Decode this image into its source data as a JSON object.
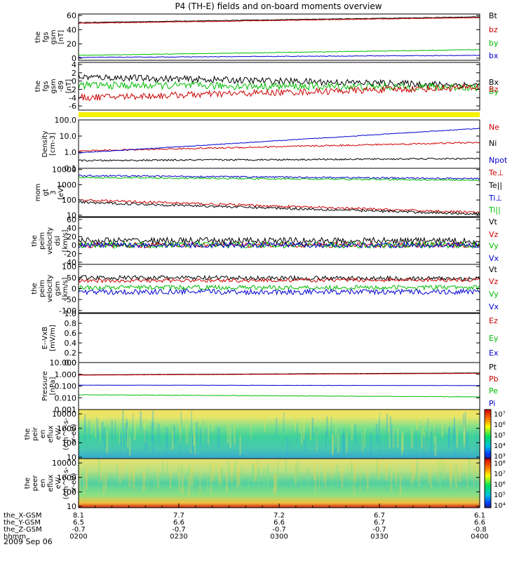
{
  "title": "P4 (TH-E) fields and on-board moments overview",
  "date": "2009 Sep 06",
  "chart_data": [
    {
      "type": "line",
      "ylabel": [
        "the",
        "fgs",
        "gsm",
        "[nT]"
      ],
      "yticks": [
        "60",
        "40",
        "20",
        "0"
      ],
      "tick_values": [
        60,
        40,
        20,
        0
      ],
      "ylim": [
        -3,
        62
      ],
      "yscale": "linear",
      "legend": [
        {
          "label": "Bt",
          "color": "#000000"
        },
        {
          "label": "bz",
          "color": "#cc0000"
        },
        {
          "label": "by",
          "color": "#00bb00"
        },
        {
          "label": "bx",
          "color": "#0000cc"
        }
      ],
      "series": [
        {
          "color": "#000000",
          "start": 50,
          "end": 58,
          "noise": 0.4
        },
        {
          "color": "#cc0000",
          "start": 49,
          "end": 57,
          "noise": 0.4
        },
        {
          "color": "#00bb00",
          "start": 4,
          "end": 12,
          "noise": 0.4
        },
        {
          "color": "#0000cc",
          "start": 1,
          "end": 4,
          "noise": 0.4
        }
      ]
    },
    {
      "type": "line",
      "ylabel": [
        "the",
        "fgs",
        "gsm",
        "-89"
      ],
      "ylabel_suffix": "[nT]",
      "yticks": [
        "4",
        "2",
        "0",
        "-2",
        "-4",
        "-6"
      ],
      "tick_values": [
        4,
        2,
        0,
        -2,
        -4,
        -6
      ],
      "ylim": [
        -7,
        4.5
      ],
      "yscale": "linear",
      "legend": [
        {
          "label": "Bx",
          "color": "#000000"
        },
        {
          "label": "By",
          "color": "#00bb00"
        },
        {
          "label": "Bz",
          "color": "#cc0000"
        }
      ],
      "series": [
        {
          "color": "#000000",
          "start": 1,
          "end": -1,
          "noise": 0.8
        },
        {
          "color": "#00bb00",
          "start": -1,
          "end": -1.5,
          "noise": 0.9
        },
        {
          "color": "#cc0000",
          "start": -4,
          "end": -1.5,
          "noise": 0.8
        }
      ]
    },
    {
      "type": "line",
      "ylabel": [
        "Density",
        "[cm-3]"
      ],
      "yticks": [
        "100.0",
        "10.0",
        "1.0",
        "0.1"
      ],
      "tick_values": [
        100,
        10,
        1,
        0.1
      ],
      "ylim": [
        0.1,
        100
      ],
      "yscale": "log",
      "legend": [
        {
          "label": "Ne",
          "color": "#cc0000"
        },
        {
          "label": "Ni",
          "color": "#000000"
        },
        {
          "label": "Npot",
          "color": "#0000cc"
        }
      ],
      "series": [
        {
          "color": "#cc0000",
          "start": 1.2,
          "end": 4,
          "noise": 0.05
        },
        {
          "color": "#000000",
          "start": 0.3,
          "end": 0.4,
          "noise": 0.05
        },
        {
          "color": "#0000cc",
          "start": 0.9,
          "end": 30,
          "noise": 0.02
        }
      ]
    },
    {
      "type": "line",
      "ylabel": [
        "mom",
        "gt",
        "3",
        "[eV]"
      ],
      "yticks": [
        "10000",
        "1000",
        "100",
        "10"
      ],
      "tick_values": [
        10000,
        1000,
        100,
        10
      ],
      "ylim": [
        8,
        12000
      ],
      "yscale": "log",
      "legend": [
        {
          "label": "Te⊥",
          "color": "#cc0000"
        },
        {
          "label": "Te||",
          "color": "#000000"
        },
        {
          "label": "Ti⊥",
          "color": "#0000cc"
        },
        {
          "label": "Ti||",
          "color": "#00bb00"
        }
      ],
      "series": [
        {
          "color": "#cc0000",
          "start": 100,
          "end": 15,
          "noise": 0.08
        },
        {
          "color": "#000000",
          "start": 70,
          "end": 12,
          "noise": 0.08
        },
        {
          "color": "#0000cc",
          "start": 4000,
          "end": 2500,
          "noise": 0.05
        },
        {
          "color": "#00bb00",
          "start": 3000,
          "end": 2000,
          "noise": 0.05
        }
      ]
    },
    {
      "type": "line",
      "ylabel": [
        "the",
        "peim",
        "velocity",
        "dsl",
        "[km/s]"
      ],
      "yticks": [
        "60",
        "40",
        "20",
        "0",
        "-20",
        "-40"
      ],
      "tick_values": [
        60,
        40,
        20,
        0,
        -20,
        -40
      ],
      "ylim": [
        -45,
        65
      ],
      "yscale": "linear",
      "legend": [
        {
          "label": "Vt",
          "color": "#000000"
        },
        {
          "label": "Vz",
          "color": "#cc0000"
        },
        {
          "label": "Vy",
          "color": "#00bb00"
        },
        {
          "label": "Vx",
          "color": "#0000cc"
        }
      ],
      "series": [
        {
          "color": "#000000",
          "start": 10,
          "end": 10,
          "noise": 8
        },
        {
          "color": "#cc0000",
          "start": 0,
          "end": 0,
          "noise": 6
        },
        {
          "color": "#00bb00",
          "start": 0,
          "end": 0,
          "noise": 7
        },
        {
          "color": "#0000cc",
          "start": 0,
          "end": 0,
          "noise": 6
        }
      ]
    },
    {
      "type": "line",
      "ylabel": [
        "the",
        "peim",
        "velocity",
        "gsm",
        "[km/s]"
      ],
      "yticks": [
        "100",
        "50",
        "0",
        "-50",
        "-100"
      ],
      "tick_values": [
        100,
        50,
        0,
        -50,
        -100
      ],
      "ylim": [
        -110,
        110
      ],
      "yscale": "linear",
      "legend": [
        {
          "label": "Vt",
          "color": "#000000"
        },
        {
          "label": "Vz",
          "color": "#cc0000"
        },
        {
          "label": "Vy",
          "color": "#00bb00"
        },
        {
          "label": "Vx",
          "color": "#0000cc"
        }
      ],
      "series": [
        {
          "color": "#000000",
          "start": 50,
          "end": 45,
          "noise": 10
        },
        {
          "color": "#cc0000",
          "start": 35,
          "end": 40,
          "noise": 8
        },
        {
          "color": "#00bb00",
          "start": 5,
          "end": 5,
          "noise": 10
        },
        {
          "color": "#0000cc",
          "start": -15,
          "end": -15,
          "noise": 12
        }
      ]
    },
    {
      "type": "line",
      "ylabel": [
        "E--VxB",
        "[mV/m]"
      ],
      "yticks": [
        "1.0",
        "0.8",
        "0.6",
        "0.4",
        "0.2",
        "0.0"
      ],
      "tick_values": [
        1,
        0.8,
        0.6,
        0.4,
        0.2,
        0
      ],
      "ylim": [
        0,
        1
      ],
      "yscale": "linear",
      "legend": [
        {
          "label": "Ez",
          "color": "#cc0000"
        },
        {
          "label": "Ey",
          "color": "#00bb00"
        },
        {
          "label": "Ex",
          "color": "#0000cc"
        }
      ],
      "series": []
    },
    {
      "type": "line",
      "ylabel": [
        "Pressure",
        "[nPa]"
      ],
      "yticks": [
        "10.000",
        "1.000",
        "0.100",
        "0.010",
        "0.001"
      ],
      "tick_values": [
        10,
        1,
        0.1,
        0.01,
        0.001
      ],
      "ylim": [
        0.001,
        10
      ],
      "yscale": "log",
      "legend": [
        {
          "label": "Pt",
          "color": "#000000"
        },
        {
          "label": "Pb",
          "color": "#cc0000"
        },
        {
          "label": "Pe",
          "color": "#00bb00"
        },
        {
          "label": "Pi",
          "color": "#0000cc"
        }
      ],
      "series": [
        {
          "color": "#000000",
          "start": 0.9,
          "end": 1.3,
          "noise": 0.005
        },
        {
          "color": "#cc0000",
          "start": 0.85,
          "end": 1.2,
          "noise": 0.005
        },
        {
          "color": "#0000cc",
          "start": 0.12,
          "end": 0.11,
          "noise": 0.01
        },
        {
          "color": "#00bb00",
          "start": 0.018,
          "end": 0.012,
          "noise": 0.02
        }
      ]
    },
    {
      "type": "heatmap",
      "ylabel": [
        "the",
        "peir",
        "en",
        "eflux",
        "eV/",
        "(cm^2-s-",
        "sr-eV)"
      ],
      "yticks": [
        "10000",
        "1000",
        "100",
        "10"
      ],
      "tick_values": [
        10000,
        1000,
        100,
        10
      ],
      "ylim": [
        8,
        20000
      ],
      "yscale": "log",
      "colorbar_ticks": [
        "10⁷",
        "10⁶",
        "10⁵",
        "10⁴",
        "10³"
      ],
      "series": []
    },
    {
      "type": "heatmap",
      "ylabel": [
        "the",
        "peer",
        "en",
        "eflux",
        "eV/",
        "(cm^2-s-",
        "sr-eV)"
      ],
      "yticks": [
        "10000",
        "1000",
        "100",
        "10"
      ],
      "tick_values": [
        10000,
        1000,
        100,
        10
      ],
      "ylim": [
        8,
        20000
      ],
      "yscale": "log",
      "colorbar_ticks": [
        "10⁸",
        "10⁷",
        "10⁶",
        "10⁵",
        "10⁴"
      ],
      "series": []
    }
  ],
  "x_axis": {
    "row_labels": [
      "the_X-GSM",
      "the_Y-GSM",
      "the_Z-GSM",
      "hhmm"
    ],
    "columns": [
      {
        "values": [
          "8.1",
          "6.5",
          "-0.7",
          "0200"
        ]
      },
      {
        "values": [
          "7.7",
          "6.6",
          "-0.7",
          "0230"
        ]
      },
      {
        "values": [
          "7.2",
          "6.6",
          "-0.7",
          "0300"
        ]
      },
      {
        "values": [
          "6.7",
          "6.7",
          "-0.7",
          "0330"
        ]
      },
      {
        "values": [
          "6.1",
          "6.6",
          "-0.8",
          "0400"
        ]
      }
    ]
  }
}
